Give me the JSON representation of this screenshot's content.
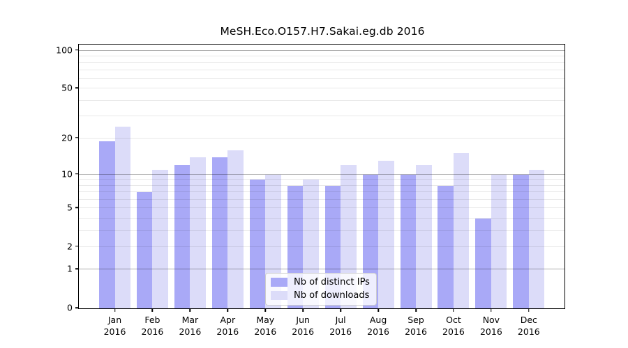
{
  "chart_data": {
    "type": "bar",
    "title": "MeSH.Eco.O157.H7.Sakai.eg.db 2016",
    "categories": [
      "Jan",
      "Feb",
      "Mar",
      "Apr",
      "May",
      "Jun",
      "Jul",
      "Aug",
      "Sep",
      "Oct",
      "Nov",
      "Dec"
    ],
    "x_year_label": "2016",
    "series": [
      {
        "name": "Nb of distinct IPs",
        "color": "#a9a9f7",
        "values": [
          19,
          7,
          12,
          14,
          9,
          8,
          8,
          10,
          10,
          8,
          4,
          10
        ]
      },
      {
        "name": "Nb of downloads",
        "color": "#dcdcf9",
        "values": [
          25,
          11,
          14,
          16,
          10,
          9,
          12,
          13,
          12,
          15,
          10,
          11
        ]
      }
    ],
    "yscale": "log1p",
    "ylim": [
      0,
      110
    ],
    "yticks": [
      0,
      1,
      2,
      5,
      10,
      20,
      50,
      100
    ],
    "ytick_labels": [
      "0",
      "1",
      "2",
      "5",
      "10",
      "20",
      "50",
      "100"
    ],
    "gridlines_major": [
      1,
      10,
      100
    ],
    "gridlines_minor": [
      2,
      3,
      4,
      5,
      6,
      7,
      8,
      9,
      20,
      30,
      40,
      50,
      60,
      70,
      80,
      90
    ],
    "grid": true,
    "legend_position": "bottom-center"
  },
  "colors": {
    "bar_distinct_ips": "#a9a9f7",
    "bar_downloads": "#dcdcf9",
    "grid_major": "rgba(0,0,0,0.32)",
    "grid_minor": "rgba(0,0,0,0.09)",
    "axis": "#000000",
    "legend_border": "#cccccc",
    "legend_bg": "rgba(255,255,255,0.8)"
  }
}
